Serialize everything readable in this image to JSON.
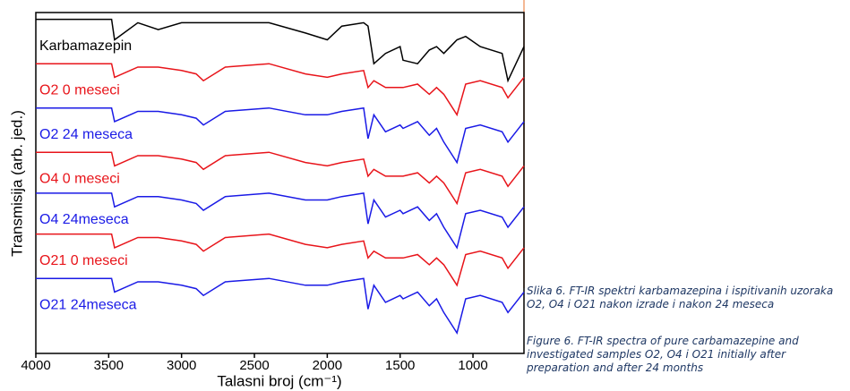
{
  "chart_data": {
    "type": "line",
    "xlabel": "Talasni broj (cm⁻¹)",
    "ylabel": "Transmisija (arb. jed.)",
    "x": [
      4000,
      3700,
      3480,
      3460,
      3300,
      3160,
      3000,
      2900,
      2850,
      2700,
      2400,
      2150,
      2000,
      1900,
      1750,
      1720,
      1680,
      1600,
      1500,
      1480,
      1380,
      1300,
      1250,
      1200,
      1110,
      1050,
      950,
      800,
      760,
      650
    ],
    "xlim": [
      4000,
      650
    ],
    "xticks": [
      4000,
      3500,
      3000,
      2500,
      2000,
      1500,
      1000
    ],
    "ylim": [
      0,
      100
    ],
    "series": [
      {
        "name": "Karbamazepin",
        "color": "#000000",
        "values": [
          98,
          98,
          98,
          92,
          97,
          95,
          97,
          97,
          97,
          97,
          97,
          94,
          92,
          96,
          97,
          96,
          85,
          88,
          90,
          86,
          85,
          89,
          90,
          88,
          92,
          93,
          90,
          88,
          80,
          90
        ]
      },
      {
        "name": "O2 0 meseci",
        "color": "#e8141a",
        "values": [
          85,
          85,
          85,
          81,
          84,
          84,
          83,
          82,
          80,
          84,
          85,
          82,
          81,
          82,
          83,
          78,
          80,
          78,
          78,
          78,
          79,
          76,
          78,
          76,
          70,
          79,
          80,
          78,
          75,
          81
        ]
      },
      {
        "name": "O2 24 meseca",
        "color": "#1a1ae6",
        "values": [
          72,
          72,
          72,
          68,
          71,
          71,
          70,
          69,
          67,
          71,
          72,
          70,
          70,
          71,
          72,
          63,
          70,
          65,
          67,
          66,
          68,
          64,
          66,
          62,
          56,
          66,
          67,
          65,
          62,
          68
        ]
      },
      {
        "name": "O4 0 meseci",
        "color": "#e8141a",
        "values": [
          59,
          59,
          59,
          55,
          58,
          58,
          57,
          56,
          54,
          58,
          59,
          56,
          55,
          56,
          57,
          52,
          54,
          52,
          52,
          52,
          53,
          50,
          52,
          50,
          44,
          53,
          54,
          52,
          49,
          55
        ]
      },
      {
        "name": "O4 24meseca",
        "color": "#1a1ae6",
        "values": [
          47,
          47,
          47,
          43,
          46,
          46,
          45,
          44,
          42,
          46,
          47,
          45,
          45,
          46,
          47,
          38,
          45,
          40,
          42,
          41,
          43,
          39,
          41,
          37,
          31,
          41,
          42,
          40,
          37,
          43
        ]
      },
      {
        "name": "O21 0 meseci",
        "color": "#e8141a",
        "values": [
          35,
          35,
          35,
          31,
          34,
          34,
          33,
          32,
          30,
          34,
          35,
          32,
          31,
          32,
          33,
          28,
          30,
          28,
          28,
          28,
          29,
          26,
          28,
          26,
          20,
          29,
          30,
          28,
          25,
          31
        ]
      },
      {
        "name": "O21 24meseca",
        "color": "#1a1ae6",
        "values": [
          22,
          22,
          22,
          18,
          21,
          21,
          20,
          19,
          17,
          21,
          22,
          20,
          20,
          21,
          22,
          13,
          20,
          15,
          17,
          16,
          18,
          14,
          16,
          12,
          6,
          16,
          17,
          15,
          12,
          18
        ]
      }
    ]
  },
  "caption": {
    "sr": "Slika 6. FT-IR spektri karbamazepina i ispitivanih uzoraka O2, O4 i O21 nakon izrade i nakon 24 meseca",
    "en": "Figure 6. FT-IR spectra of pure carbamazepine and investigated samples O2, O4 i O21 initially after preparation and after 24 months"
  }
}
